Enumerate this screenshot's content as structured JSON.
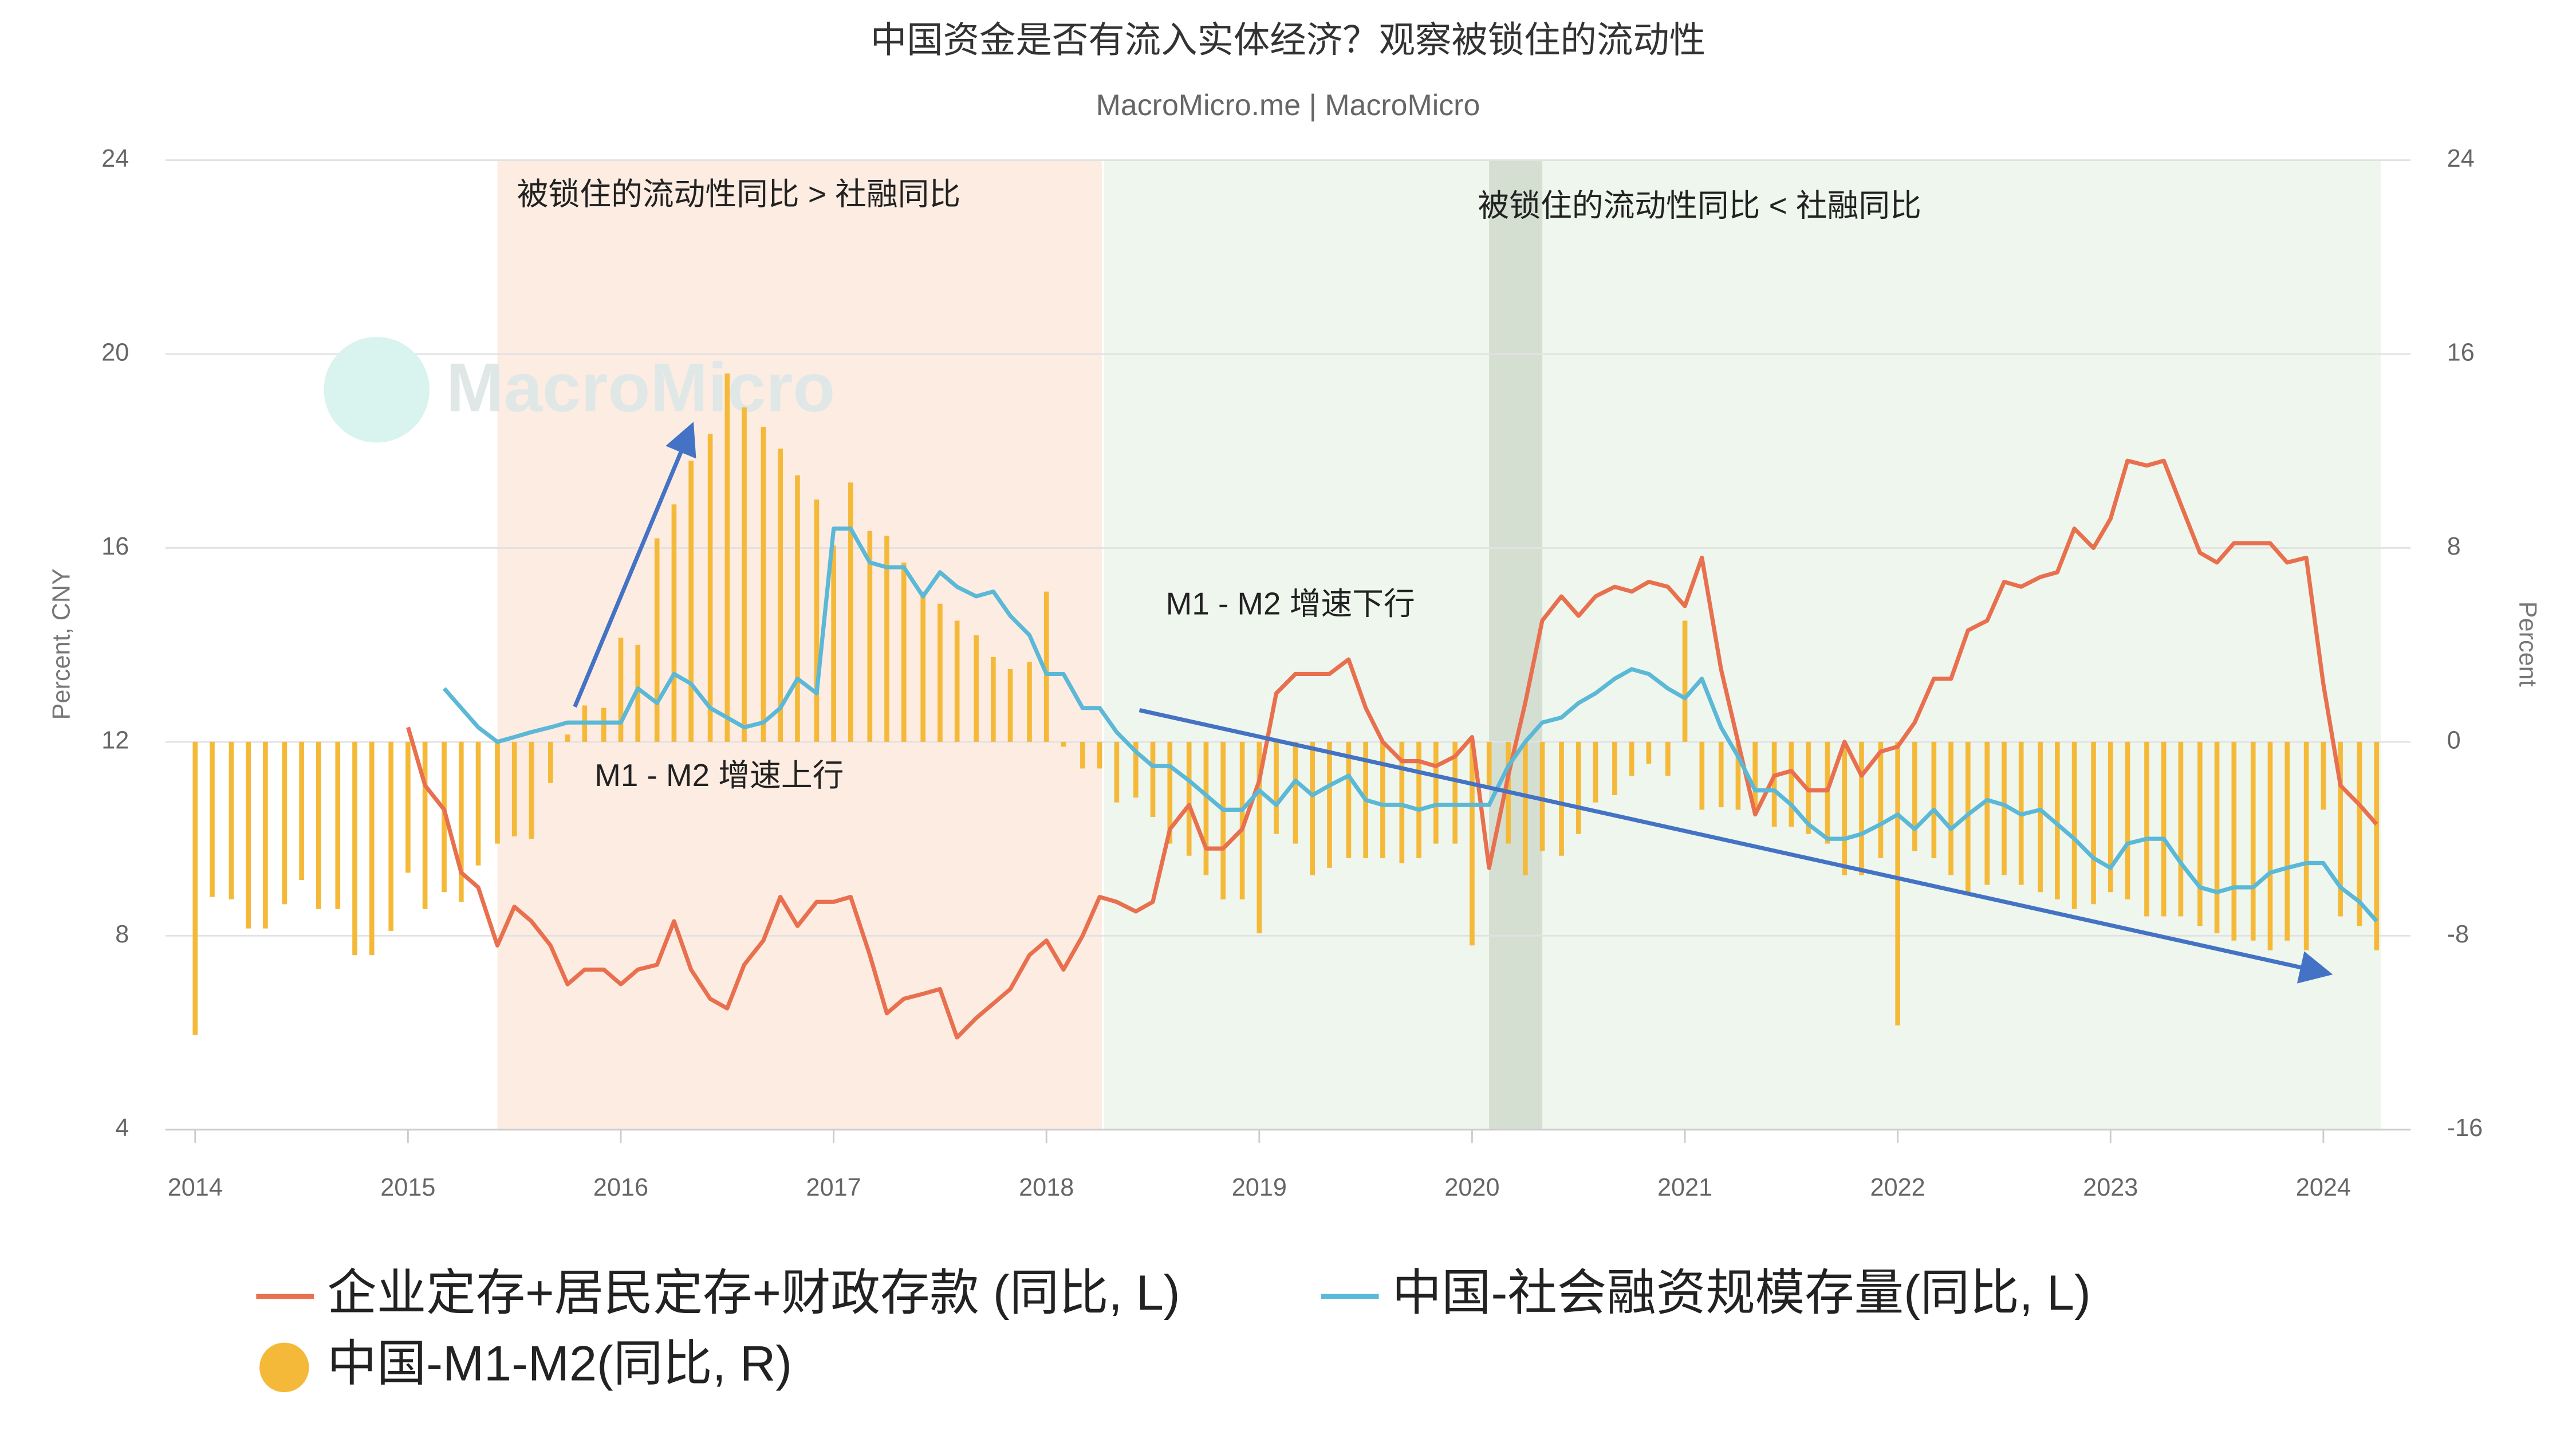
{
  "chart_data": {
    "type": "bar-line",
    "title": "中国资金是否有流入实体经济？观察被锁住的流动性",
    "subtitle": "MacroMicro.me | MacroMicro",
    "watermark": "MacroMicro",
    "y_label": "Percent, CNY",
    "y2_label": "Percent",
    "annotations": [
      "被锁住的流动性同比 > 社融同比",
      "被锁住的流动性同比 < 社融同比",
      "M1 - M2 增速上行",
      "M1 - M2 增速下行"
    ],
    "bands": [
      {
        "from": 2015.42,
        "to": 2018.26,
        "color": "rgba(250,205,180,0.38)"
      },
      {
        "from": 2018.27,
        "to": 2024.27,
        "color": "rgba(205,228,200,0.32)"
      },
      {
        "from": 2020.08,
        "to": 2020.33,
        "color": "rgba(150,170,150,0.3)"
      }
    ],
    "xlim": [
      2013.86,
      2024.41
    ],
    "xticks": [
      2014,
      2015,
      2016,
      2017,
      2018,
      2019,
      2020,
      2021,
      2022,
      2023,
      2024
    ],
    "ylim": [
      4,
      24
    ],
    "yticks": [
      4,
      8,
      12,
      16,
      20,
      24
    ],
    "y2lim": [
      -16,
      24
    ],
    "y2ticks": [
      -16,
      -8,
      0,
      8,
      16,
      24
    ],
    "grid": true,
    "x": [
      2014,
      2014.08,
      2014.17,
      2014.25,
      2014.33,
      2014.42,
      2014.5,
      2014.58,
      2014.67,
      2014.75,
      2014.83,
      2014.92,
      2015,
      2015.08,
      2015.17,
      2015.25,
      2015.33,
      2015.42,
      2015.5,
      2015.58,
      2015.67,
      2015.75,
      2015.83,
      2015.92,
      2016,
      2016.08,
      2016.17,
      2016.25,
      2016.33,
      2016.42,
      2016.5,
      2016.58,
      2016.67,
      2016.75,
      2016.83,
      2016.92,
      2017,
      2017.08,
      2017.17,
      2017.25,
      2017.33,
      2017.42,
      2017.5,
      2017.58,
      2017.67,
      2017.75,
      2017.83,
      2017.92,
      2018,
      2018.08,
      2018.17,
      2018.25,
      2018.33,
      2018.42,
      2018.5,
      2018.58,
      2018.67,
      2018.75,
      2018.83,
      2018.92,
      2019,
      2019.08,
      2019.17,
      2019.25,
      2019.33,
      2019.42,
      2019.5,
      2019.58,
      2019.67,
      2019.75,
      2019.83,
      2019.92,
      2020,
      2020.08,
      2020.17,
      2020.25,
      2020.33,
      2020.42,
      2020.5,
      2020.58,
      2020.67,
      2020.75,
      2020.83,
      2020.92,
      2021,
      2021.08,
      2021.17,
      2021.25,
      2021.33,
      2021.42,
      2021.5,
      2021.58,
      2021.67,
      2021.75,
      2021.83,
      2021.92,
      2022,
      2022.08,
      2022.17,
      2022.25,
      2022.33,
      2022.42,
      2022.5,
      2022.58,
      2022.67,
      2022.75,
      2022.83,
      2022.92,
      2023,
      2023.08,
      2023.17,
      2023.25,
      2023.33,
      2023.42,
      2023.5,
      2023.58,
      2023.67,
      2023.75,
      2023.83,
      2023.92,
      2024,
      2024.08,
      2024.17,
      2024.25
    ],
    "series": [
      {
        "name": "企业定存+居民定存+财政存款 (同比, L)",
        "type": "line",
        "color": "#e8704f",
        "values": [
          null,
          null,
          null,
          null,
          null,
          null,
          null,
          null,
          null,
          null,
          null,
          null,
          12.3,
          11.1,
          10.6,
          9.3,
          9.0,
          7.8,
          8.6,
          8.3,
          7.8,
          7.0,
          7.3,
          7.3,
          7.0,
          7.3,
          7.4,
          8.3,
          7.3,
          6.7,
          6.5,
          7.4,
          7.9,
          8.8,
          8.2,
          8.7,
          8.7,
          8.8,
          7.6,
          6.4,
          6.7,
          6.8,
          6.9,
          5.9,
          6.3,
          6.6,
          6.9,
          7.6,
          7.9,
          7.3,
          8.0,
          8.8,
          8.7,
          8.5,
          8.7,
          10.2,
          10.7,
          9.8,
          9.8,
          10.2,
          11.2,
          13.0,
          13.4,
          13.4,
          13.4,
          13.7,
          12.7,
          12.0,
          11.6,
          11.6,
          11.5,
          11.7,
          12.1,
          9.4,
          11.3,
          12.8,
          14.5,
          15.0,
          14.6,
          15.0,
          15.2,
          15.1,
          15.3,
          15.2,
          14.8,
          15.8,
          13.5,
          12.0,
          10.5,
          11.3,
          11.4,
          11.0,
          11.0,
          12.0,
          11.3,
          11.8,
          11.9,
          12.4,
          13.3,
          13.3,
          14.3,
          14.5,
          15.3,
          15.2,
          15.4,
          15.5,
          16.4,
          16.0,
          16.6,
          17.8,
          17.7,
          17.8,
          16.9,
          15.9,
          15.7,
          16.1,
          16.1,
          16.1,
          15.7,
          15.8,
          13.2,
          11.1,
          10.7,
          10.3
        ]
      },
      {
        "name": "中国-社会融资规模存量(同比, L)",
        "type": "line",
        "color": "#5bb8d6",
        "values": [
          null,
          null,
          null,
          null,
          null,
          null,
          null,
          null,
          null,
          null,
          null,
          null,
          null,
          null,
          13.1,
          12.7,
          12.3,
          12.0,
          12.1,
          12.2,
          12.3,
          12.4,
          12.4,
          12.4,
          12.4,
          13.1,
          12.8,
          13.4,
          13.2,
          12.7,
          12.5,
          12.3,
          12.4,
          12.7,
          13.3,
          13.0,
          16.4,
          16.4,
          15.7,
          15.6,
          15.6,
          15.0,
          15.5,
          15.2,
          15.0,
          15.1,
          14.6,
          14.2,
          13.4,
          13.4,
          12.7,
          12.7,
          12.2,
          11.8,
          11.5,
          11.5,
          11.2,
          10.9,
          10.6,
          10.6,
          11.0,
          10.7,
          11.2,
          10.9,
          11.1,
          11.3,
          10.8,
          10.7,
          10.7,
          10.6,
          10.7,
          10.7,
          10.7,
          10.7,
          11.5,
          12.0,
          12.4,
          12.5,
          12.8,
          13.0,
          13.3,
          13.5,
          13.4,
          13.1,
          12.9,
          13.3,
          12.3,
          11.7,
          11.0,
          11.0,
          10.7,
          10.3,
          10.0,
          10.0,
          10.1,
          10.3,
          10.5,
          10.2,
          10.6,
          10.2,
          10.5,
          10.8,
          10.7,
          10.5,
          10.6,
          10.3,
          10.0,
          9.6,
          9.4,
          9.9,
          10.0,
          10.0,
          9.5,
          9.0,
          8.9,
          9.0,
          9.0,
          9.3,
          9.4,
          9.5,
          9.5,
          9.0,
          8.7,
          8.3
        ]
      },
      {
        "name": "中国-M1-M2(同比, R)",
        "type": "bar",
        "axis": "y2",
        "color": "#f5b93a",
        "values": [
          -12.1,
          -6.4,
          -6.5,
          -7.7,
          -7.7,
          -6.7,
          -5.7,
          -6.9,
          -6.9,
          -8.8,
          -8.8,
          -7.8,
          -5.4,
          -6.9,
          -6.2,
          -6.6,
          -5.1,
          -4.2,
          -3.9,
          -4.0,
          -1.7,
          0.3,
          1.5,
          1.4,
          4.3,
          4.0,
          8.4,
          9.8,
          11.6,
          12.7,
          15.2,
          13.8,
          13.0,
          12.1,
          11.0,
          10.0,
          8.1,
          10.7,
          8.7,
          8.5,
          7.4,
          6.2,
          5.7,
          5.0,
          4.4,
          3.5,
          3.0,
          3.3,
          6.2,
          -0.2,
          -1.1,
          -1.1,
          -2.5,
          -2.3,
          -3.1,
          -4.2,
          -4.7,
          -5.5,
          -6.5,
          -6.5,
          -7.9,
          -3.8,
          -4.2,
          -5.5,
          -5.2,
          -4.8,
          -4.8,
          -4.8,
          -5.0,
          -4.8,
          -4.2,
          -4.2,
          -8.4,
          -1.8,
          -4.2,
          -5.5,
          -4.5,
          -4.7,
          -3.8,
          -2.5,
          -2.2,
          -1.4,
          -0.9,
          -1.4,
          5.0,
          -2.8,
          -2.7,
          -2.8,
          -2.8,
          -3.5,
          -3.5,
          -3.8,
          -4.2,
          -5.5,
          -5.5,
          -4.8,
          -11.7,
          -4.5,
          -4.8,
          -5.5,
          -6.2,
          -5.9,
          -5.5,
          -5.9,
          -6.2,
          -6.5,
          -6.9,
          -6.7,
          -6.2,
          -6.5,
          -7.2,
          -7.2,
          -7.2,
          -7.6,
          -7.9,
          -8.2,
          -8.2,
          -8.6,
          -8.2,
          -8.6,
          -2.8,
          -7.2,
          -7.6,
          -8.6
        ]
      }
    ]
  }
}
